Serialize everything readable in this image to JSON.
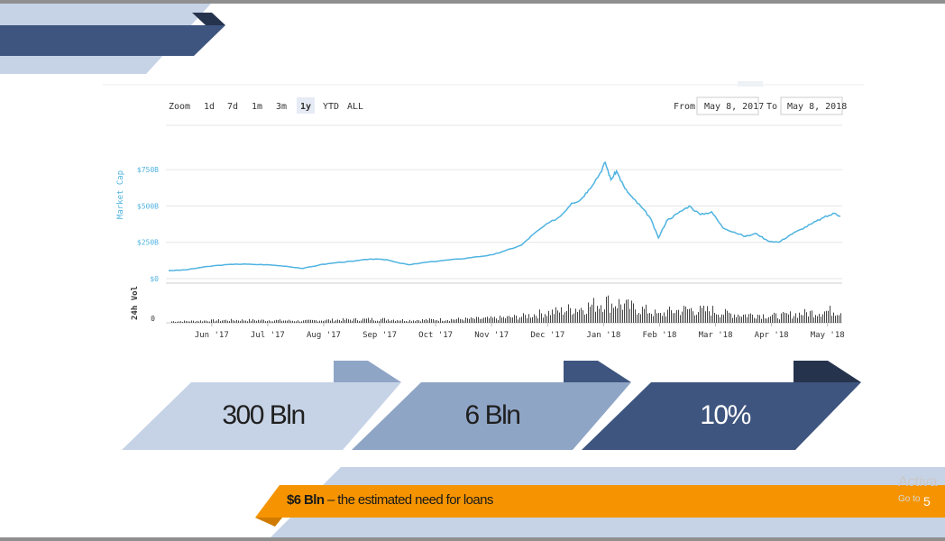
{
  "toolbar": {
    "zoom_label": "Zoom",
    "zoom_buttons": [
      "1d",
      "7d",
      "1m",
      "3m",
      "1y",
      "YTD",
      "ALL"
    ],
    "selected_zoom": "1y",
    "from_label": "From",
    "from_value": "May 8, 2017",
    "to_label": "To",
    "to_value": "May 8, 2018"
  },
  "chart_data": {
    "type": "line",
    "ylabel": "Market Cap",
    "ylim": [
      0,
      850
    ],
    "yticks": [
      0,
      250,
      500,
      750
    ],
    "ytick_labels": [
      "$0",
      "$250B",
      "$500B",
      "$750B"
    ],
    "xtick_labels": [
      "Jun '17",
      "Jul '17",
      "Aug '17",
      "Sep '17",
      "Oct '17",
      "Nov '17",
      "Dec '17",
      "Jan '18",
      "Feb '18",
      "Mar '18",
      "Apr '18",
      "May '18"
    ],
    "xlim_months": [
      0,
      12
    ],
    "xtick_positions_months": [
      0.77,
      1.77,
      2.77,
      3.77,
      4.77,
      5.77,
      6.77,
      7.77,
      8.77,
      9.77,
      10.77,
      11.77
    ],
    "series": [
      {
        "x": [
          0,
          0.3,
          0.6,
          0.9,
          1.2,
          1.5,
          1.8,
          2.1,
          2.4,
          2.7,
          3.0,
          3.3,
          3.6,
          3.9,
          4.1,
          4.3,
          4.6,
          4.9,
          5.2,
          5.5,
          5.8,
          6.0,
          6.3,
          6.5,
          6.7,
          7.0,
          7.2,
          7.35,
          7.5,
          7.7,
          7.8,
          7.9,
          8.0,
          8.15,
          8.3,
          8.45,
          8.6,
          8.75,
          8.9,
          9.1,
          9.3,
          9.5,
          9.7,
          9.9,
          10.1,
          10.3,
          10.5,
          10.7,
          10.9,
          11.1,
          11.3,
          11.5,
          11.7,
          11.9,
          12.0
        ],
        "y": [
          55,
          60,
          78,
          92,
          100,
          98,
          95,
          85,
          70,
          95,
          110,
          120,
          135,
          130,
          110,
          95,
          112,
          125,
          135,
          150,
          165,
          190,
          230,
          300,
          360,
          430,
          520,
          540,
          610,
          720,
          800,
          680,
          740,
          620,
          550,
          490,
          420,
          280,
          400,
          450,
          500,
          440,
          460,
          350,
          320,
          290,
          310,
          260,
          250,
          300,
          340,
          380,
          420,
          450,
          430
        ]
      }
    ],
    "volume_label": "24h Vol",
    "volume_tick_label": "0",
    "volume_seed": 7
  },
  "stats": [
    {
      "value": "300 Bln"
    },
    {
      "value": "6 Bln"
    },
    {
      "value": "10%"
    }
  ],
  "footer": {
    "bold": "$6 Bln",
    "text": " – the estimated need for loans",
    "page_number": "5"
  },
  "watermark": {
    "line1": "Activa",
    "line2": "Go to"
  },
  "colors": {
    "line": "#4fb3e0",
    "light_blue": "#c6d3e6",
    "mid_blue": "#8fa5c6",
    "dark_blue": "#3e557f",
    "navy": "#26334d",
    "orange": "#f59400"
  }
}
